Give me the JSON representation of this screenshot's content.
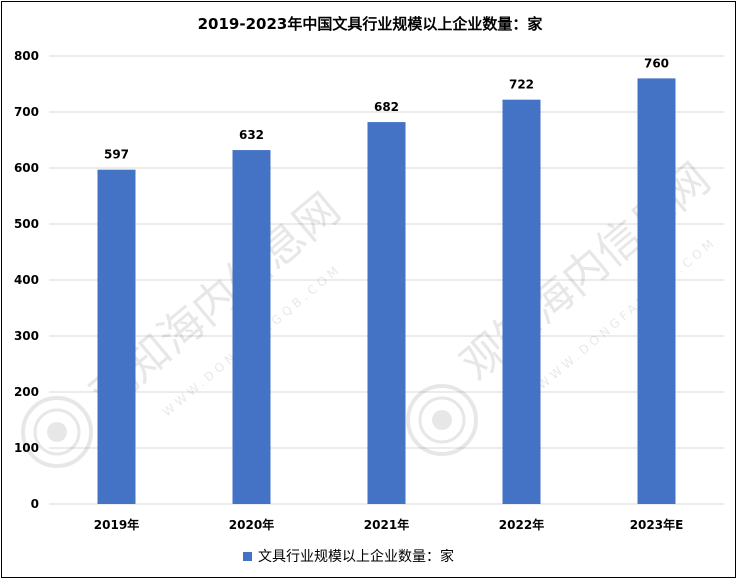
{
  "chart_data": {
    "type": "bar",
    "title": "2019-2023年中国文具行业规模以上企业数量：家",
    "categories": [
      "2019年",
      "2020年",
      "2021年",
      "2022年",
      "2023年E"
    ],
    "series": [
      {
        "name": "文具行业规模以上企业数量：家",
        "values": [
          597,
          632,
          682,
          722,
          760
        ]
      }
    ],
    "ylim": [
      0,
      800
    ],
    "yticks": [
      0,
      100,
      200,
      300,
      400,
      500,
      600,
      700,
      800
    ],
    "grid": true,
    "legend": "bottom",
    "bar_color": "#4472C4",
    "data_labels": true
  },
  "watermark": {
    "text": "观知海内信息网",
    "url": "WWW.DONGFANGQB.COM"
  }
}
